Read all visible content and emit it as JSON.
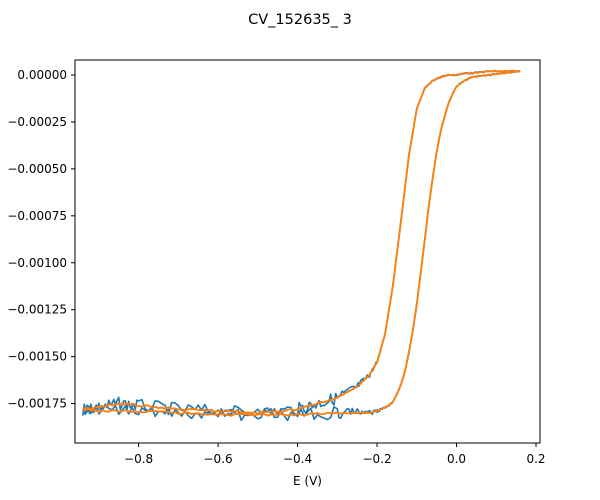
{
  "chart_data": {
    "type": "line",
    "title": "CV_152635_ 3",
    "xlabel": "E (V)",
    "ylabel": "",
    "xlim": [
      -0.96,
      0.21
    ],
    "ylim": [
      -0.00196,
      8e-05
    ],
    "xticks": [
      -0.8,
      -0.6,
      -0.4,
      -0.2,
      0.0,
      0.2
    ],
    "xtick_labels": [
      "−0.8",
      "−0.6",
      "−0.4",
      "−0.2",
      "0.0",
      "0.2"
    ],
    "yticks": [
      0.0,
      -0.00025,
      -0.0005,
      -0.00075,
      -0.001,
      -0.00125,
      -0.0015,
      -0.00175
    ],
    "ytick_labels": [
      "0.00000",
      "−0.00025",
      "−0.00050",
      "−0.00075",
      "−0.00100",
      "−0.00125",
      "−0.00150",
      "−0.00175"
    ],
    "grid": false,
    "legend": "none",
    "series": [
      {
        "color": "#1f77b4",
        "noisy": true,
        "x": [
          0.16,
          0.12,
          0.08,
          0.04,
          0.02,
          0.0,
          -0.01,
          -0.02,
          -0.03,
          -0.04,
          -0.05,
          -0.06,
          -0.07,
          -0.08,
          -0.09,
          -0.1,
          -0.11,
          -0.12,
          -0.13,
          -0.14,
          -0.15,
          -0.16,
          -0.17,
          -0.18,
          -0.19,
          -0.2,
          -0.22,
          -0.25,
          -0.3,
          -0.4,
          -0.5,
          -0.6,
          -0.7,
          -0.8,
          -0.9,
          -0.94,
          -0.9,
          -0.85,
          -0.8,
          -0.7,
          -0.6,
          -0.5,
          -0.4,
          -0.35,
          -0.3,
          -0.25,
          -0.22,
          -0.2,
          -0.18,
          -0.16,
          -0.14,
          -0.12,
          -0.1,
          -0.08,
          -0.06,
          -0.04,
          -0.02,
          0.0,
          0.02,
          0.04,
          0.08,
          0.12,
          0.16
        ],
        "y": [
          2e-05,
          1e-05,
          0.0,
          -1e-05,
          -3e-05,
          -6e-05,
          -0.0001,
          -0.00015,
          -0.00022,
          -0.0003,
          -0.00041,
          -0.00055,
          -0.0007,
          -0.00088,
          -0.00105,
          -0.00122,
          -0.00136,
          -0.00148,
          -0.00158,
          -0.00165,
          -0.0017,
          -0.00174,
          -0.00176,
          -0.00177,
          -0.00178,
          -0.00179,
          -0.0018,
          -0.0018,
          -0.0018,
          -0.00181,
          -0.00181,
          -0.00181,
          -0.0018,
          -0.00179,
          -0.00179,
          -0.00178,
          -0.00177,
          -0.00175,
          -0.00176,
          -0.00178,
          -0.00179,
          -0.0018,
          -0.00178,
          -0.00175,
          -0.00172,
          -0.00166,
          -0.0016,
          -0.00153,
          -0.00138,
          -0.00112,
          -0.00078,
          -0.00043,
          -0.00018,
          -7e-05,
          -3e-05,
          -1e-05,
          0.0,
          0.0,
          1e-05,
          1e-05,
          2e-05,
          2e-05,
          2e-05
        ]
      },
      {
        "color": "#ff7f0e",
        "noisy": false,
        "x": [
          0.16,
          0.12,
          0.08,
          0.04,
          0.02,
          0.0,
          -0.01,
          -0.02,
          -0.03,
          -0.04,
          -0.05,
          -0.06,
          -0.07,
          -0.08,
          -0.09,
          -0.1,
          -0.11,
          -0.12,
          -0.13,
          -0.14,
          -0.15,
          -0.16,
          -0.17,
          -0.18,
          -0.19,
          -0.2,
          -0.22,
          -0.25,
          -0.3,
          -0.4,
          -0.5,
          -0.6,
          -0.7,
          -0.8,
          -0.9,
          -0.94,
          -0.9,
          -0.85,
          -0.8,
          -0.7,
          -0.6,
          -0.5,
          -0.4,
          -0.35,
          -0.3,
          -0.25,
          -0.22,
          -0.2,
          -0.18,
          -0.16,
          -0.14,
          -0.12,
          -0.1,
          -0.08,
          -0.06,
          -0.04,
          -0.02,
          0.0,
          0.02,
          0.04,
          0.08,
          0.12,
          0.16
        ],
        "y": [
          2e-05,
          1e-05,
          0.0,
          -1e-05,
          -3e-05,
          -6e-05,
          -0.0001,
          -0.00015,
          -0.00022,
          -0.0003,
          -0.00041,
          -0.00055,
          -0.0007,
          -0.00088,
          -0.00105,
          -0.00122,
          -0.00136,
          -0.00148,
          -0.00158,
          -0.00165,
          -0.0017,
          -0.00174,
          -0.00176,
          -0.00177,
          -0.00178,
          -0.00179,
          -0.0018,
          -0.0018,
          -0.0018,
          -0.00181,
          -0.00181,
          -0.00181,
          -0.0018,
          -0.00179,
          -0.00179,
          -0.00178,
          -0.00177,
          -0.00175,
          -0.00176,
          -0.00178,
          -0.00179,
          -0.0018,
          -0.00178,
          -0.00175,
          -0.00172,
          -0.00166,
          -0.0016,
          -0.00153,
          -0.00138,
          -0.00112,
          -0.00078,
          -0.00043,
          -0.00018,
          -7e-05,
          -3e-05,
          -1e-05,
          0.0,
          0.0,
          1e-05,
          1e-05,
          2e-05,
          2e-05,
          2e-05
        ]
      }
    ]
  }
}
